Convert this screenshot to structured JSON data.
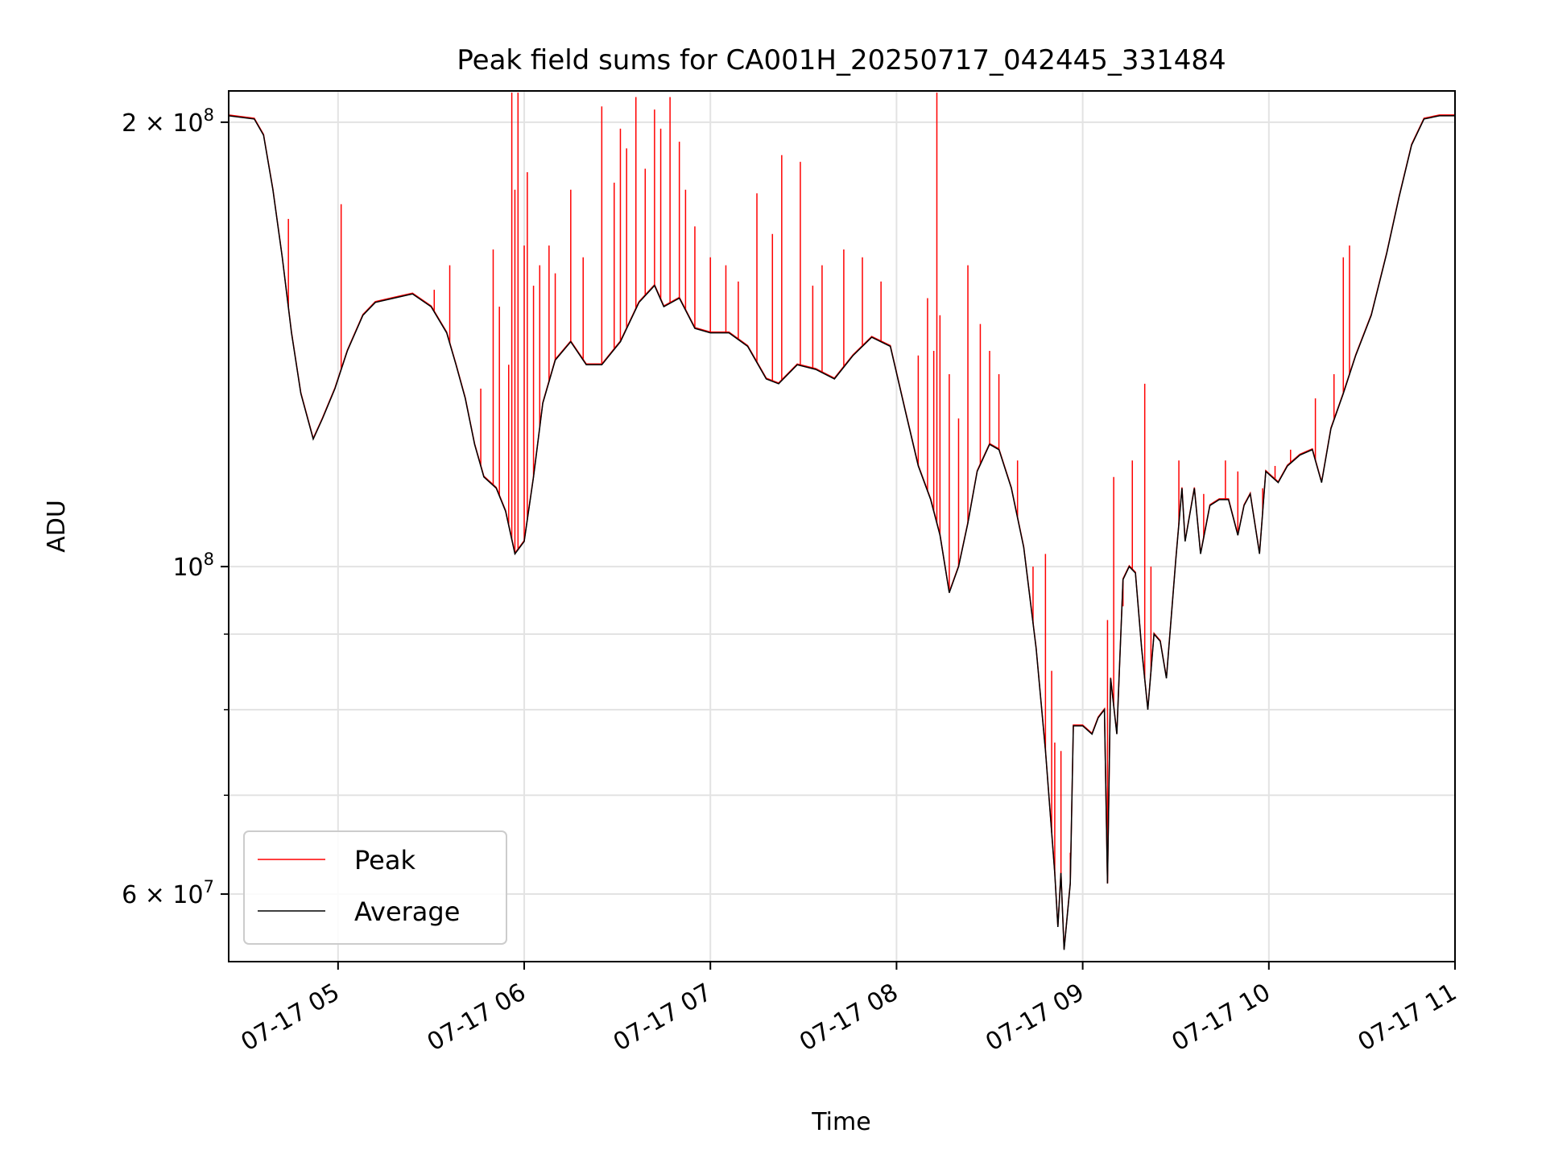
{
  "chart_data": {
    "type": "line",
    "title": "Peak field sums for CA001H_20250717_042445_331484",
    "xlabel": "Time",
    "ylabel": "ADU",
    "y_scale": "log",
    "grid": true,
    "legend_position": "lower-left",
    "xlim": [
      "2025-07-17T04:24:45",
      "2025-07-17T11:00:00"
    ],
    "ylim": [
      54000000,
      210000000
    ],
    "x_ticks": [
      {
        "value": "2025-07-17T05:00:00",
        "label": "07-17 05"
      },
      {
        "value": "2025-07-17T06:00:00",
        "label": "07-17 06"
      },
      {
        "value": "2025-07-17T07:00:00",
        "label": "07-17 07"
      },
      {
        "value": "2025-07-17T08:00:00",
        "label": "07-17 08"
      },
      {
        "value": "2025-07-17T09:00:00",
        "label": "07-17 09"
      },
      {
        "value": "2025-07-17T10:00:00",
        "label": "07-17 10"
      },
      {
        "value": "2025-07-17T11:00:00",
        "label": "07-17 11"
      }
    ],
    "y_major_ticks": [
      {
        "value": 60000000,
        "mantissa": "6",
        "exponent": "7"
      },
      {
        "value": 100000000,
        "mantissa": "",
        "exponent": "8"
      },
      {
        "value": 200000000,
        "mantissa": "2",
        "exponent": "8"
      }
    ],
    "y_minor_ticks": [
      70000000,
      80000000,
      90000000
    ],
    "series": [
      {
        "name": "Average",
        "color": "#000000",
        "points": [
          [
            "04:24:45",
            202000000
          ],
          [
            "04:33",
            201000000
          ],
          [
            "04:36",
            196000000
          ],
          [
            "04:39",
            180000000
          ],
          [
            "04:42",
            162000000
          ],
          [
            "04:45",
            144000000
          ],
          [
            "04:48",
            131000000
          ],
          [
            "04:52",
            122000000
          ],
          [
            "04:55",
            126000000
          ],
          [
            "04:59",
            132000000
          ],
          [
            "05:03",
            140000000
          ],
          [
            "05:08",
            148000000
          ],
          [
            "05:12",
            151000000
          ],
          [
            "05:18",
            152000000
          ],
          [
            "05:24",
            153000000
          ],
          [
            "05:30",
            150000000
          ],
          [
            "05:35",
            144000000
          ],
          [
            "05:38",
            137000000
          ],
          [
            "05:41",
            130000000
          ],
          [
            "05:44",
            121000000
          ],
          [
            "05:47",
            115000000
          ],
          [
            "05:51",
            113000000
          ],
          [
            "05:54",
            109000000
          ],
          [
            "05:57",
            102000000
          ],
          [
            "06:00",
            104000000
          ],
          [
            "06:03",
            115000000
          ],
          [
            "06:06",
            129000000
          ],
          [
            "06:10",
            138000000
          ],
          [
            "06:15",
            142000000
          ],
          [
            "06:20",
            137000000
          ],
          [
            "06:25",
            137000000
          ],
          [
            "06:31",
            142000000
          ],
          [
            "06:37",
            151000000
          ],
          [
            "06:42",
            155000000
          ],
          [
            "06:45",
            150000000
          ],
          [
            "06:50",
            152000000
          ],
          [
            "06:55",
            145000000
          ],
          [
            "07:00",
            144000000
          ],
          [
            "07:06",
            144000000
          ],
          [
            "07:12",
            141000000
          ],
          [
            "07:18",
            134000000
          ],
          [
            "07:22",
            133000000
          ],
          [
            "07:28",
            137000000
          ],
          [
            "07:34",
            136000000
          ],
          [
            "07:40",
            134000000
          ],
          [
            "07:46",
            139000000
          ],
          [
            "07:52",
            143000000
          ],
          [
            "07:58",
            141000000
          ],
          [
            "08:03",
            127000000
          ],
          [
            "08:07",
            117000000
          ],
          [
            "08:11",
            111000000
          ],
          [
            "08:14",
            105000000
          ],
          [
            "08:17",
            96000000
          ],
          [
            "08:20",
            100000000
          ],
          [
            "08:23",
            107000000
          ],
          [
            "08:26",
            116000000
          ],
          [
            "08:30",
            121000000
          ],
          [
            "08:33",
            120000000
          ],
          [
            "08:37",
            113000000
          ],
          [
            "08:41",
            103000000
          ],
          [
            "08:45",
            88000000
          ],
          [
            "08:48",
            75000000
          ],
          [
            "08:51",
            62000000
          ],
          [
            "08:52",
            57000000
          ],
          [
            "08:53",
            62000000
          ],
          [
            "08:54",
            55000000
          ],
          [
            "08:56",
            61000000
          ],
          [
            "08:57",
            78000000
          ],
          [
            "09:00",
            78000000
          ],
          [
            "09:03",
            77000000
          ],
          [
            "09:05",
            79000000
          ],
          [
            "09:07",
            80000000
          ],
          [
            "09:08",
            61000000
          ],
          [
            "09:09",
            84000000
          ],
          [
            "09:11",
            77000000
          ],
          [
            "09:13",
            98000000
          ],
          [
            "09:15",
            100000000
          ],
          [
            "09:17",
            99000000
          ],
          [
            "09:19",
            88000000
          ],
          [
            "09:21",
            80000000
          ],
          [
            "09:23",
            90000000
          ],
          [
            "09:25",
            89000000
          ],
          [
            "09:27",
            84000000
          ],
          [
            "09:30",
            101000000
          ],
          [
            "09:32",
            113000000
          ],
          [
            "09:33",
            104000000
          ],
          [
            "09:36",
            113000000
          ],
          [
            "09:38",
            102000000
          ],
          [
            "09:41",
            110000000
          ],
          [
            "09:44",
            111000000
          ],
          [
            "09:47",
            111000000
          ],
          [
            "09:50",
            105000000
          ],
          [
            "09:52",
            110000000
          ],
          [
            "09:54",
            112000000
          ],
          [
            "09:57",
            102000000
          ],
          [
            "09:59",
            116000000
          ],
          [
            "10:03",
            114000000
          ],
          [
            "10:06",
            117000000
          ],
          [
            "10:10",
            119000000
          ],
          [
            "10:14",
            120000000
          ],
          [
            "10:17",
            114000000
          ],
          [
            "10:20",
            124000000
          ],
          [
            "10:24",
            131000000
          ],
          [
            "10:28",
            139000000
          ],
          [
            "10:33",
            148000000
          ],
          [
            "10:38",
            163000000
          ],
          [
            "10:42",
            178000000
          ],
          [
            "10:46",
            193000000
          ],
          [
            "10:50",
            201000000
          ],
          [
            "10:55",
            202000000
          ],
          [
            "11:00",
            202000000
          ]
        ]
      },
      {
        "name": "Peak",
        "color": "#ff0000",
        "spikes": [
          [
            "04:44",
            172000000
          ],
          [
            "05:01",
            176000000
          ],
          [
            "05:31",
            154000000
          ],
          [
            "05:36",
            160000000
          ],
          [
            "05:46",
            132000000
          ],
          [
            "05:50",
            164000000
          ],
          [
            "05:52",
            150000000
          ],
          [
            "05:55",
            137000000
          ],
          [
            "05:56",
            210000000
          ],
          [
            "05:57",
            180000000
          ],
          [
            "05:58",
            210000000
          ],
          [
            "06:00",
            165000000
          ],
          [
            "06:01",
            185000000
          ],
          [
            "06:03",
            155000000
          ],
          [
            "06:05",
            160000000
          ],
          [
            "06:08",
            165000000
          ],
          [
            "06:10",
            158000000
          ],
          [
            "06:15",
            180000000
          ],
          [
            "06:19",
            162000000
          ],
          [
            "06:25",
            205000000
          ],
          [
            "06:29",
            182000000
          ],
          [
            "06:31",
            198000000
          ],
          [
            "06:33",
            192000000
          ],
          [
            "06:36",
            208000000
          ],
          [
            "06:39",
            186000000
          ],
          [
            "06:42",
            204000000
          ],
          [
            "06:44",
            198000000
          ],
          [
            "06:47",
            208000000
          ],
          [
            "06:50",
            194000000
          ],
          [
            "06:52",
            180000000
          ],
          [
            "06:55",
            170000000
          ],
          [
            "07:00",
            162000000
          ],
          [
            "07:05",
            160000000
          ],
          [
            "07:09",
            156000000
          ],
          [
            "07:15",
            179000000
          ],
          [
            "07:20",
            168000000
          ],
          [
            "07:23",
            190000000
          ],
          [
            "07:29",
            188000000
          ],
          [
            "07:33",
            155000000
          ],
          [
            "07:36",
            160000000
          ],
          [
            "07:43",
            164000000
          ],
          [
            "07:49",
            162000000
          ],
          [
            "07:55",
            156000000
          ],
          [
            "08:07",
            139000000
          ],
          [
            "08:10",
            152000000
          ],
          [
            "08:12",
            140000000
          ],
          [
            "08:13",
            210000000
          ],
          [
            "08:14",
            148000000
          ],
          [
            "08:17",
            135000000
          ],
          [
            "08:20",
            126000000
          ],
          [
            "08:23",
            160000000
          ],
          [
            "08:27",
            146000000
          ],
          [
            "08:30",
            140000000
          ],
          [
            "08:33",
            135000000
          ],
          [
            "08:39",
            118000000
          ],
          [
            "08:44",
            100000000
          ],
          [
            "08:48",
            102000000
          ],
          [
            "08:50",
            85000000
          ],
          [
            "08:51",
            76000000
          ],
          [
            "08:53",
            75000000
          ],
          [
            "08:56",
            64000000
          ],
          [
            "09:08",
            92000000
          ],
          [
            "09:10",
            115000000
          ],
          [
            "09:13",
            94000000
          ],
          [
            "09:16",
            118000000
          ],
          [
            "09:20",
            133000000
          ],
          [
            "09:22",
            100000000
          ],
          [
            "09:31",
            118000000
          ],
          [
            "09:39",
            112000000
          ],
          [
            "09:46",
            118000000
          ],
          [
            "09:50",
            116000000
          ],
          [
            "09:58",
            113000000
          ],
          [
            "10:02",
            117000000
          ],
          [
            "10:07",
            120000000
          ],
          [
            "10:15",
            130000000
          ],
          [
            "10:21",
            135000000
          ],
          [
            "10:24",
            162000000
          ],
          [
            "10:26",
            165000000
          ]
        ]
      }
    ]
  }
}
